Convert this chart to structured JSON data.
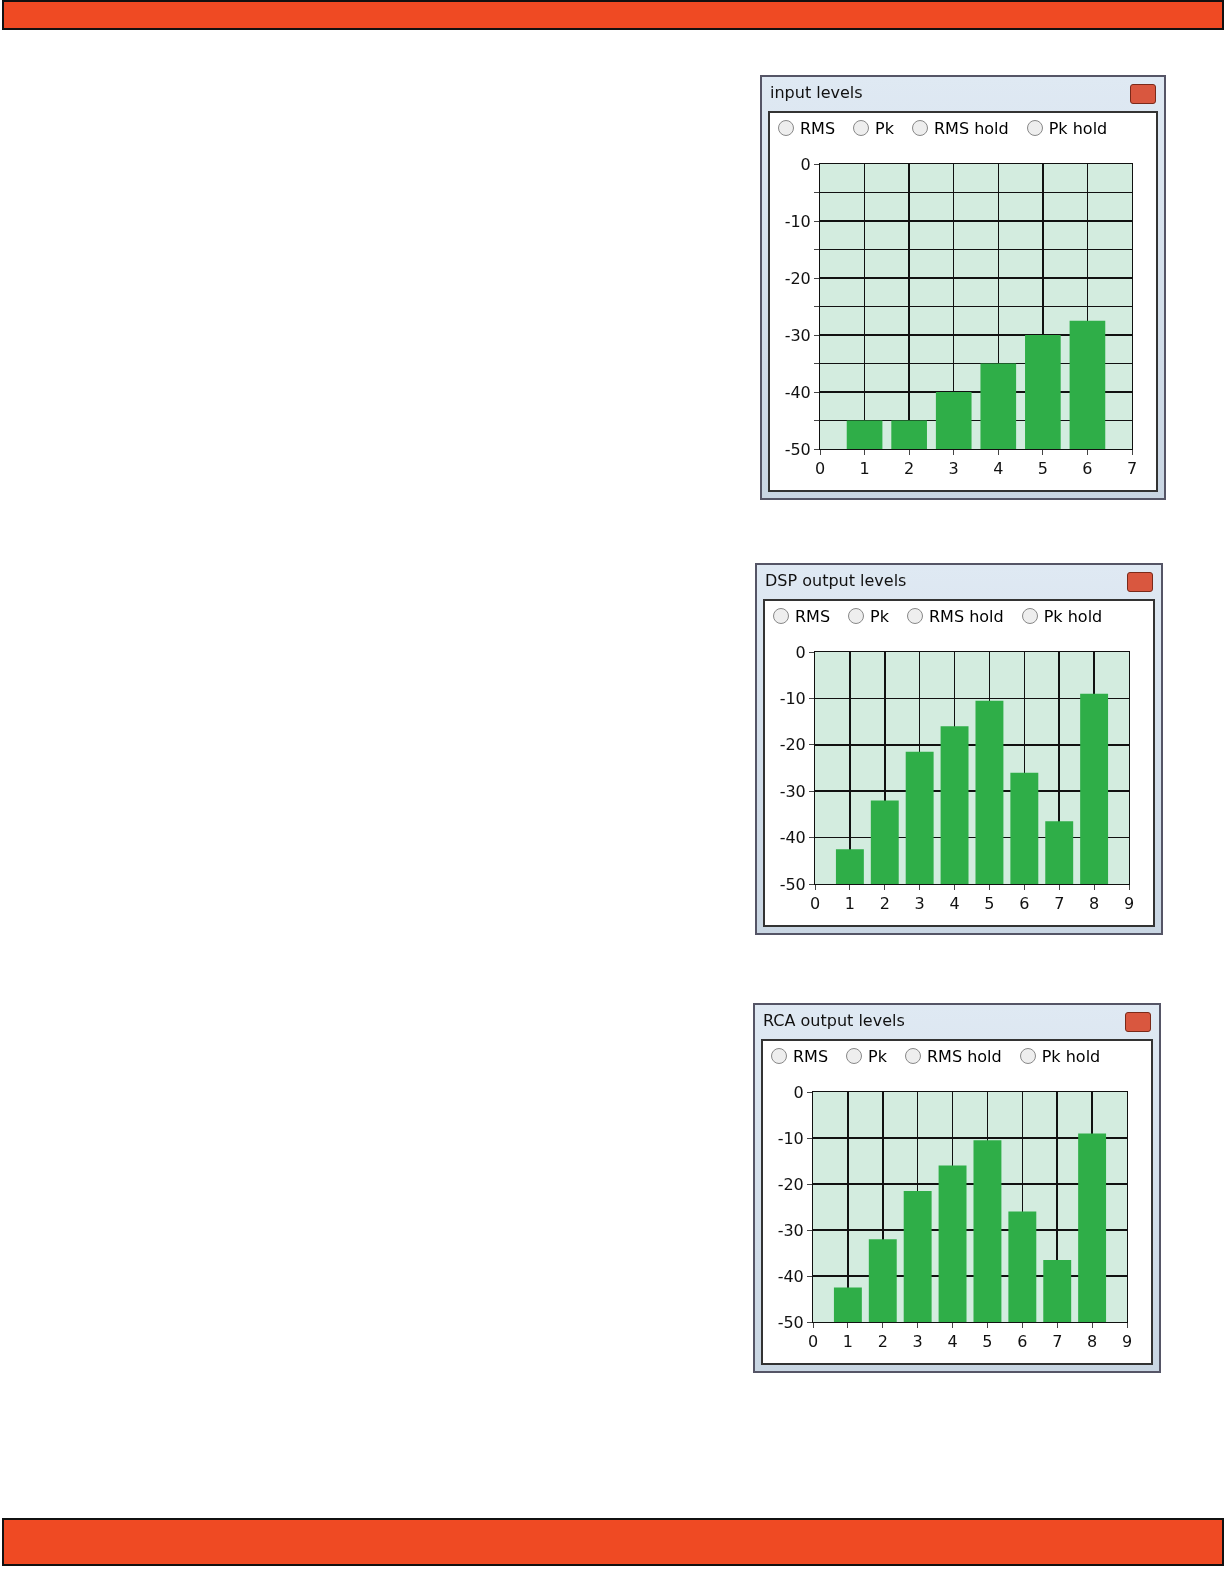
{
  "chart_data": [
    {
      "type": "bar",
      "title": "input levels",
      "annotations": [
        "RMS",
        "Pk",
        "RMS hold",
        "Pk hold"
      ],
      "x": [
        1,
        2,
        3,
        4,
        5,
        6
      ],
      "base": [
        -50,
        -50,
        -50,
        -50,
        -50,
        -50
      ],
      "values": [
        5,
        5,
        10,
        15,
        20,
        22.5
      ],
      "color": "#2fae48",
      "xlim": [
        0,
        7
      ],
      "xticks": [
        0,
        1,
        2,
        3,
        4,
        5,
        6,
        7
      ],
      "ylim": [
        -50,
        0
      ],
      "yticks": [
        0,
        {
          "value": -5,
          "label": null
        },
        -10,
        {
          "value": -15,
          "label": null
        },
        -20,
        {
          "value": -25,
          "label": null
        },
        -30,
        {
          "value": -35,
          "label": null
        },
        -40,
        {
          "value": -45,
          "label": null
        },
        -50
      ],
      "grid": true
    },
    {
      "type": "bar",
      "title": "DSP output levels",
      "annotations": [
        "RMS",
        "Pk",
        "RMS hold",
        "Pk hold"
      ],
      "x": [
        1,
        2,
        3,
        4,
        5,
        6,
        7,
        8
      ],
      "base": [
        -50,
        -50,
        -50,
        -50,
        -50,
        -50,
        -50,
        -50
      ],
      "values": [
        7.5,
        18,
        28.5,
        34,
        39.5,
        24,
        13.5,
        41
      ],
      "color": "#2fae48",
      "xlim": [
        0,
        9
      ],
      "xticks": [
        0,
        1,
        2,
        3,
        4,
        5,
        6,
        7,
        8,
        9
      ],
      "ylim": [
        -50,
        0
      ],
      "yticks": [
        0,
        -10,
        -20,
        -30,
        -40,
        -50
      ],
      "grid": true
    },
    {
      "type": "bar",
      "title": "RCA output levels",
      "annotations": [
        "RMS",
        "Pk",
        "RMS hold",
        "Pk hold"
      ],
      "x": [
        1,
        2,
        3,
        4,
        5,
        6,
        7,
        8
      ],
      "base": [
        -50,
        -50,
        -50,
        -50,
        -50,
        -50,
        -50,
        -50
      ],
      "values": [
        7.5,
        18,
        28.5,
        34,
        39.5,
        24,
        13.5,
        41
      ],
      "color": "#2fae48",
      "xlim": [
        0,
        9
      ],
      "xticks": [
        0,
        1,
        2,
        3,
        4,
        5,
        6,
        7,
        8,
        9
      ],
      "ylim": [
        -50,
        0
      ],
      "yticks": [
        0,
        -10,
        -20,
        -30,
        -40,
        -50
      ],
      "grid": true
    }
  ]
}
